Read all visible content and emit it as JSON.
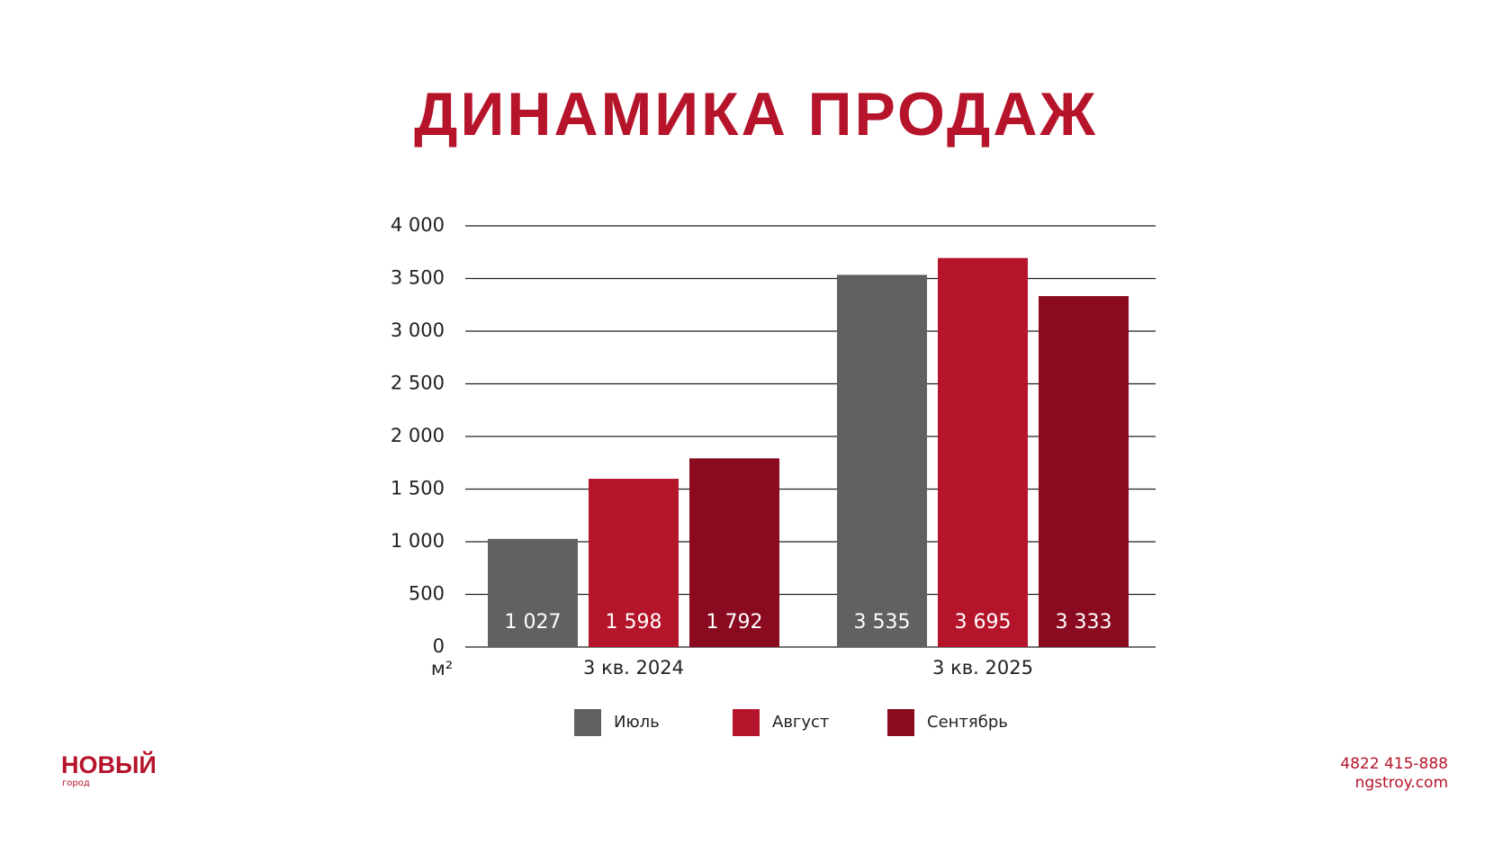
{
  "chart_data": {
    "type": "bar",
    "title": "ДИНАМИКА ПРОДАЖ",
    "categories": [
      "3 кв. 2024",
      "3 кв. 2025"
    ],
    "y_unit": "м²",
    "series": [
      {
        "name": "Июль",
        "color": "#616161",
        "values": [
          1027,
          3535
        ],
        "value_labels": [
          "1 027",
          "3 535"
        ]
      },
      {
        "name": "Август",
        "color": "#b5152b",
        "values": [
          1598,
          3695
        ],
        "value_labels": [
          "1 598",
          "3 695"
        ]
      },
      {
        "name": "Сентябрь",
        "color": "#8a0a20",
        "values": [
          1792,
          3333
        ],
        "value_labels": [
          "1 792",
          "3 333"
        ]
      }
    ],
    "ylim": [
      0,
      4000
    ],
    "yticks": [
      0,
      500,
      {
        "value": 1000,
        "label": "1 000"
      },
      {
        "value": 1500,
        "label": "1 500"
      },
      {
        "value": 2000,
        "label": "2 000"
      },
      {
        "value": 2500,
        "label": "2 500"
      },
      {
        "value": 3000,
        "label": "3 000"
      },
      {
        "value": 3500,
        "label": "3 500"
      },
      {
        "value": 4000,
        "label": "4 000"
      }
    ],
    "grid": true,
    "legend": "bottom"
  },
  "logo": {
    "name": "НОВЫЙ",
    "tagline": "город"
  },
  "contacts": {
    "phone": "4822 415-888",
    "site": "ngstroy.com"
  }
}
